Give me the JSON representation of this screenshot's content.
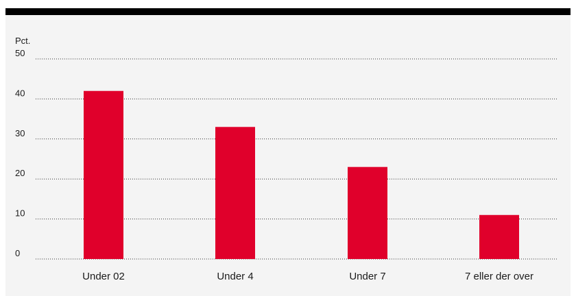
{
  "chart_data": {
    "type": "bar",
    "ylabel": "Pct.",
    "categories": [
      "Under 02",
      "Under 4",
      "Under 7",
      "7 eller der over"
    ],
    "values": [
      42,
      33,
      23,
      11
    ],
    "ylim": [
      0,
      50
    ],
    "yticks": [
      0,
      10,
      20,
      30,
      40,
      50
    ],
    "grid": true,
    "legend": "none",
    "bar_color": "#e0002b"
  },
  "colors": {
    "background": "#f4f4f4",
    "top_rule": "#000000",
    "bar": "#e0002b"
  }
}
